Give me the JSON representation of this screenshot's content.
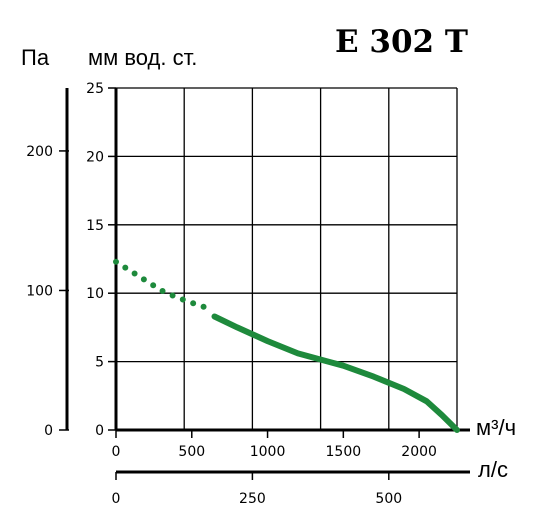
{
  "chart_data": {
    "type": "line",
    "title": "E 302 T",
    "left_axis_label": "Па",
    "ylabel": "мм вод. ст.",
    "xlabel": "м³/ч",
    "x2label": "л/с",
    "ylim": [
      0,
      25
    ],
    "yticks": [
      "0",
      "5",
      "10",
      "15",
      "20",
      "25"
    ],
    "xlim": [
      0,
      2250
    ],
    "xticks": [
      "0",
      "500",
      "1000",
      "1500",
      "2000"
    ],
    "pa_ticks": [
      {
        "label": "0",
        "mm": 0
      },
      {
        "label": "100",
        "mm": 10.2
      },
      {
        "label": "200",
        "mm": 20.4
      }
    ],
    "ls_ticks": [
      {
        "label": "0",
        "m3h": 0
      },
      {
        "label": "250",
        "m3h": 900
      },
      {
        "label": "500",
        "m3h": 1800
      }
    ],
    "grid": true,
    "series": [
      {
        "color": "#1e8a3c",
        "dotted": [
          [
            0,
            12.3
          ],
          [
            100,
            11.6
          ],
          [
            200,
            10.9
          ],
          [
            300,
            10.2
          ],
          [
            400,
            9.7
          ],
          [
            500,
            9.3
          ],
          [
            580,
            9.0
          ]
        ],
        "solid": [
          [
            650,
            8.3
          ],
          [
            800,
            7.5
          ],
          [
            1000,
            6.5
          ],
          [
            1200,
            5.6
          ],
          [
            1400,
            5.0
          ],
          [
            1500,
            4.7
          ],
          [
            1700,
            3.9
          ],
          [
            1900,
            3.0
          ],
          [
            2050,
            2.1
          ],
          [
            2150,
            1.1
          ],
          [
            2250,
            0
          ]
        ]
      }
    ]
  }
}
